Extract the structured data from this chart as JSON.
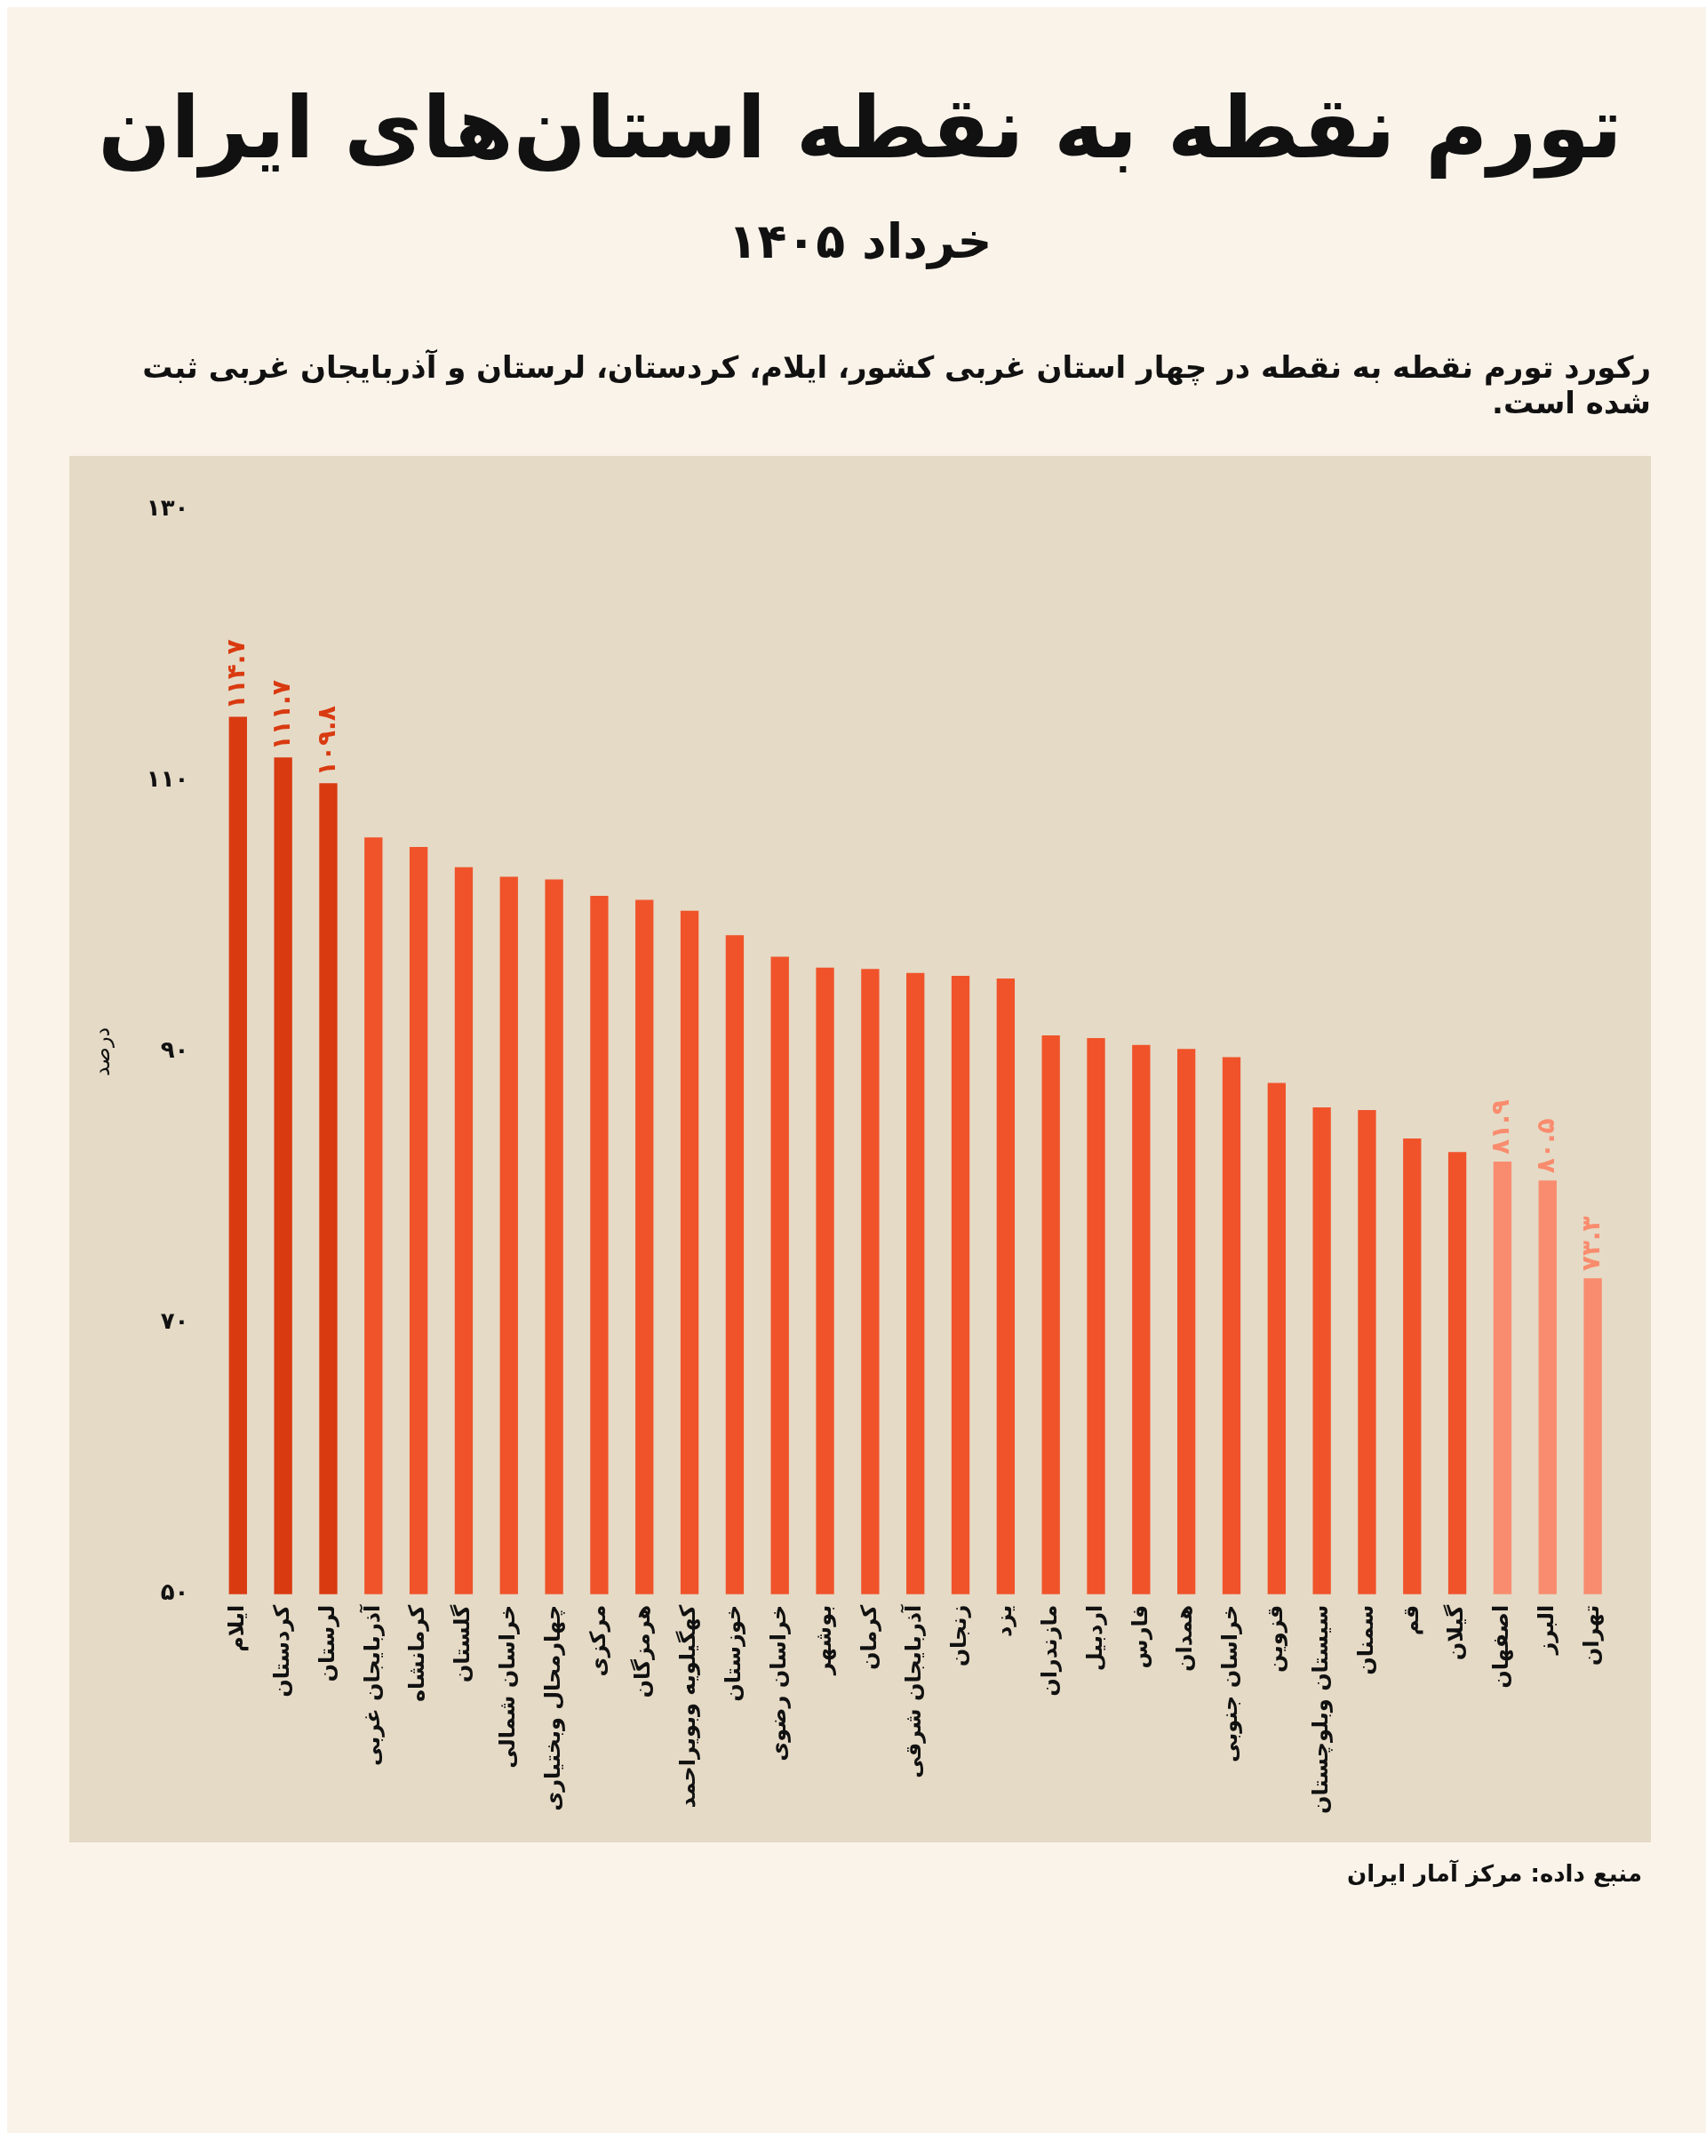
{
  "chart_data": {
    "type": "bar",
    "title": "تورم نقطه به نقطه استان‌های ایران",
    "subtitle": "خرداد ۱۴۰۵",
    "ylabel": "درصد",
    "annotations": [
      "رکورد تورم نقطه به نقطه در چهار استان غربی کشور، ایلام، کردستان، لرستان و آذربایجان غربی ثبت شده است.",
      "منبع داده: مرکز آمار ایران"
    ],
    "categories": [
      "ایلام",
      "کردستان",
      "لرستان",
      "آذربایجان غربی",
      "کرمانشاه",
      "گلستان",
      "خراسان شمالی",
      "چهارمحال وبختیاری",
      "مرکزی",
      "هرمزگان",
      "کهگیلویه وبویراحمد",
      "خوزستان",
      "خراسان رضوی",
      "بوشهر",
      "کرمان",
      "آذربایجان شرقی",
      "زنجان",
      "یزد",
      "مازندران",
      "اردبیل",
      "فارس",
      "همدان",
      "خراسان جنوبی",
      "قزوین",
      "سیستان وبلوچستان",
      "سمنان",
      "قم",
      "گیلان",
      "اصفهان",
      "البرز",
      "تهران"
    ],
    "values": [
      114.7,
      111.7,
      109.8,
      105.8,
      105.1,
      103.6,
      102.9,
      102.7,
      101.5,
      101.2,
      100.4,
      98.6,
      97.0,
      96.2,
      96.1,
      95.8,
      95.6,
      95.4,
      91.2,
      91.0,
      90.5,
      90.2,
      89.6,
      87.7,
      85.9,
      85.7,
      83.6,
      82.6,
      81.9,
      80.5,
      73.3
    ],
    "value_labels": [
      "۱۱۴.۷",
      "۱۱۱.۷",
      "۱۰۹.۸",
      null,
      null,
      null,
      null,
      null,
      null,
      null,
      null,
      null,
      null,
      null,
      null,
      null,
      null,
      null,
      null,
      null,
      null,
      null,
      null,
      null,
      null,
      null,
      null,
      null,
      "۸۱.۹",
      "۸۰.۵",
      "۷۳.۳"
    ],
    "colors": [
      "#d93a10",
      "#d93a10",
      "#d93a10",
      "#f0532a",
      "#f0532a",
      "#f0532a",
      "#f0532a",
      "#f0532a",
      "#f0532a",
      "#f0532a",
      "#f0532a",
      "#f0532a",
      "#f0532a",
      "#f0532a",
      "#f0532a",
      "#f0532a",
      "#f0532a",
      "#f0532a",
      "#f0532a",
      "#f0532a",
      "#f0532a",
      "#f0532a",
      "#f0532a",
      "#f0532a",
      "#f0532a",
      "#f0532a",
      "#f0532a",
      "#f0532a",
      "#f98c6e",
      "#f98c6e",
      "#f98c6e"
    ],
    "ylim": [
      50,
      130
    ],
    "yticks": [
      {
        "value": 50,
        "label": "۵۰"
      },
      {
        "value": 70,
        "label": "۷۰"
      },
      {
        "value": 90,
        "label": "۹۰"
      },
      {
        "value": 110,
        "label": "۱۱۰"
      },
      {
        "value": 130,
        "label": "۱۳۰"
      }
    ],
    "grid": false
  }
}
